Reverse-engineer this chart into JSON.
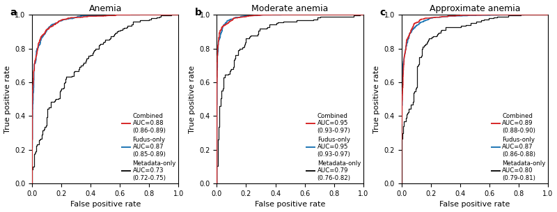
{
  "panels": [
    {
      "label": "a",
      "title": "Anemia",
      "combined_auc": "AUC=0.88\n(0.86-0.89)",
      "fudus_auc": "AUC=0.87\n(0.85-0.89)",
      "metadata_auc": "AUC=0.73\n(0.72-0.75)",
      "combined_auc_val": 0.88,
      "fudus_auc_val": 0.87,
      "metadata_auc_val": 0.73
    },
    {
      "label": "b",
      "title": "Moderate anemia",
      "combined_auc": "AUC=0.95\n(0.93-0.97)",
      "fudus_auc": "AUC=0.95\n(0.93-0.97)",
      "metadata_auc": "AUC=0.79\n(0.76-0.82)",
      "combined_auc_val": 0.95,
      "fudus_auc_val": 0.95,
      "metadata_auc_val": 0.79
    },
    {
      "label": "c",
      "title": "Approximate anemia",
      "combined_auc": "AUC=0.89\n(0.88-0.90)",
      "fudus_auc": "AUC=0.87\n(0.86-0.88)",
      "metadata_auc": "AUC=0.80\n(0.79-0.81)",
      "combined_auc_val": 0.89,
      "fudus_auc_val": 0.87,
      "metadata_auc_val": 0.8
    }
  ],
  "combined_color": "#d62728",
  "fudus_color": "#1f77b4",
  "metadata_color": "#111111",
  "xlabel": "False positive rate",
  "ylabel": "True positive rate",
  "legend_combined": "Combined",
  "legend_fudus": "Fudus-only",
  "legend_metadata": "Metadata-only",
  "figsize": [
    8.0,
    3.04
  ],
  "dpi": 100
}
